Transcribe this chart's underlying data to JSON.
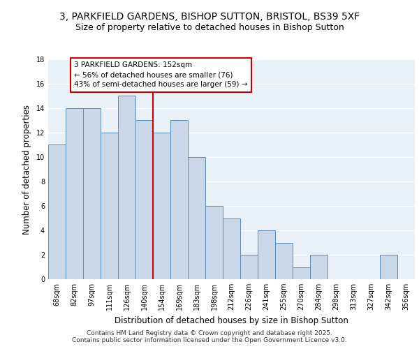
{
  "title1": "3, PARKFIELD GARDENS, BISHOP SUTTON, BRISTOL, BS39 5XF",
  "title2": "Size of property relative to detached houses in Bishop Sutton",
  "xlabel": "Distribution of detached houses by size in Bishop Sutton",
  "ylabel": "Number of detached properties",
  "bin_labels": [
    "68sqm",
    "82sqm",
    "97sqm",
    "111sqm",
    "126sqm",
    "140sqm",
    "154sqm",
    "169sqm",
    "183sqm",
    "198sqm",
    "212sqm",
    "226sqm",
    "241sqm",
    "255sqm",
    "270sqm",
    "284sqm",
    "298sqm",
    "313sqm",
    "327sqm",
    "342sqm",
    "356sqm"
  ],
  "bar_heights": [
    11,
    14,
    14,
    12,
    15,
    13,
    12,
    13,
    10,
    6,
    5,
    2,
    4,
    3,
    1,
    2,
    0,
    0,
    0,
    2,
    0
  ],
  "bar_color": "#c8d8e8",
  "bar_edge_color": "#5b8db8",
  "bg_color": "#e8f0f8",
  "grid_color": "#ffffff",
  "vline_x": 6.0,
  "vline_color": "#cc0000",
  "annotation_text": "3 PARKFIELD GARDENS: 152sqm\n← 56% of detached houses are smaller (76)\n43% of semi-detached houses are larger (59) →",
  "annotation_box_color": "#ffffff",
  "annotation_box_edge": "#cc0000",
  "ylim": [
    0,
    18
  ],
  "yticks": [
    0,
    2,
    4,
    6,
    8,
    10,
    12,
    14,
    16,
    18
  ],
  "footer": "Contains HM Land Registry data © Crown copyright and database right 2025.\nContains public sector information licensed under the Open Government Licence v3.0.",
  "title1_fontsize": 10,
  "title2_fontsize": 9,
  "xlabel_fontsize": 8.5,
  "ylabel_fontsize": 8.5,
  "tick_fontsize": 7,
  "annotation_fontsize": 7.5,
  "footer_fontsize": 6.5
}
